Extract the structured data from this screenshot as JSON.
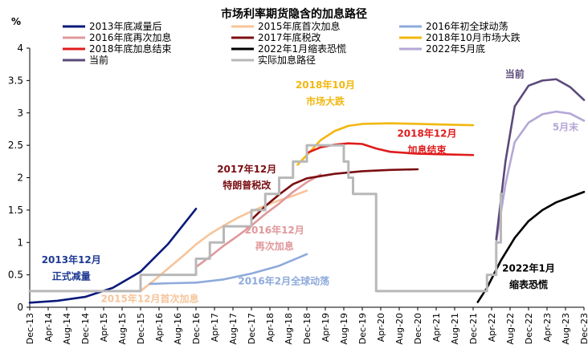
{
  "chart_data": {
    "type": "line",
    "title": "市场利率期货隐含的加息路径",
    "ylabel": "%",
    "ylim": [
      0,
      4
    ],
    "yticks": [
      "0",
      "0.5",
      "1",
      "1.5",
      "2",
      "2.5",
      "3",
      "3.5",
      "4"
    ],
    "xtick_labels": [
      "Dec-13",
      "Apr-14",
      "Aug-14",
      "Dec-14",
      "Apr-15",
      "Aug-15",
      "Dec-15",
      "Apr-16",
      "Aug-16",
      "Dec-16",
      "Apr-17",
      "Aug-17",
      "Dec-17",
      "Apr-18",
      "Aug-18",
      "Dec-18",
      "Apr-19",
      "Aug-19",
      "Dec-19",
      "Apr-20",
      "Aug-20",
      "Dec-20",
      "Apr-21",
      "Aug-21",
      "Dec-21",
      "Apr-22",
      "Aug-22",
      "Dec-22",
      "Apr-23",
      "Aug-23",
      "Dec-23"
    ],
    "grid": false,
    "legend_position": "top",
    "series": [
      {
        "name": "2013年底减量后",
        "color": "#0a1a7a",
        "x": [
          "2013-12",
          "2014-06",
          "2014-12",
          "2015-06",
          "2015-12",
          "2016-06",
          "2016-12"
        ],
        "y": [
          0.07,
          0.1,
          0.16,
          0.3,
          0.55,
          0.98,
          1.52
        ]
      },
      {
        "name": "2015年底首次加息",
        "color": "#f6c49a",
        "x": [
          "2015-12",
          "2016-03",
          "2016-06",
          "2016-09",
          "2016-12",
          "2017-03",
          "2017-06",
          "2017-09",
          "2017-12",
          "2018-03",
          "2018-06",
          "2018-09",
          "2018-12"
        ],
        "y": [
          0.25,
          0.42,
          0.6,
          0.78,
          0.97,
          1.13,
          1.26,
          1.38,
          1.48,
          1.57,
          1.65,
          1.72,
          1.8
        ]
      },
      {
        "name": "2016年初全球动荡",
        "color": "#8eaadb",
        "x": [
          "2016-02",
          "2016-06",
          "2016-12",
          "2017-06",
          "2017-12",
          "2018-06",
          "2018-12"
        ],
        "y": [
          0.36,
          0.37,
          0.38,
          0.43,
          0.52,
          0.64,
          0.82
        ]
      },
      {
        "name": "2016年底再次加息",
        "color": "#e0989b",
        "x": [
          "2016-12",
          "2017-03",
          "2017-06",
          "2017-09",
          "2017-12",
          "2018-03",
          "2018-06",
          "2018-09",
          "2018-12",
          "2019-03"
        ],
        "y": [
          0.62,
          0.78,
          0.95,
          1.1,
          1.26,
          1.44,
          1.6,
          1.78,
          1.93,
          2.05
        ]
      },
      {
        "name": "2017年底税改",
        "color": "#7b0e12",
        "x": [
          "2017-12",
          "2018-03",
          "2018-06",
          "2018-09",
          "2018-12",
          "2019-06",
          "2019-12",
          "2020-06",
          "2020-12"
        ],
        "y": [
          1.35,
          1.56,
          1.74,
          1.9,
          1.99,
          2.06,
          2.1,
          2.12,
          2.13
        ]
      },
      {
        "name": "2018年10月市场大跌",
        "color": "#f2b70f",
        "x": [
          "2018-10",
          "2018-12",
          "2019-03",
          "2019-06",
          "2019-09",
          "2019-12",
          "2020-06",
          "2020-12",
          "2021-06",
          "2021-12"
        ],
        "y": [
          2.2,
          2.35,
          2.58,
          2.72,
          2.8,
          2.83,
          2.84,
          2.83,
          2.82,
          2.81
        ]
      },
      {
        "name": "2018年底加息结束",
        "color": "#e01b1b",
        "x": [
          "2018-12",
          "2019-03",
          "2019-06",
          "2019-09",
          "2019-12",
          "2020-03",
          "2020-06",
          "2020-12",
          "2021-06",
          "2021-12"
        ],
        "y": [
          2.38,
          2.47,
          2.51,
          2.53,
          2.52,
          2.45,
          2.4,
          2.37,
          2.36,
          2.35
        ]
      },
      {
        "name": "2022年1月缩表恐慌",
        "color": "#000000",
        "x": [
          "2022-01",
          "2022-03",
          "2022-06",
          "2022-09",
          "2022-12",
          "2023-03",
          "2023-06",
          "2023-09",
          "2023-12"
        ],
        "y": [
          0.08,
          0.3,
          0.72,
          1.07,
          1.33,
          1.5,
          1.62,
          1.7,
          1.78
        ]
      },
      {
        "name": "2022年5月底",
        "color": "#b4a7d6",
        "x": [
          "2022-05",
          "2022-07",
          "2022-09",
          "2022-12",
          "2023-03",
          "2023-06",
          "2023-09",
          "2023-12"
        ],
        "y": [
          1.0,
          1.9,
          2.55,
          2.85,
          2.98,
          3.02,
          2.99,
          2.88
        ]
      },
      {
        "name": "当前",
        "color": "#5b4a7a",
        "x": [
          "2022-05",
          "2022-07",
          "2022-09",
          "2022-12",
          "2023-03",
          "2023-06",
          "2023-09",
          "2023-12"
        ],
        "y": [
          1.05,
          2.25,
          3.1,
          3.42,
          3.5,
          3.52,
          3.4,
          3.2
        ]
      },
      {
        "name": "实际加息路径",
        "color": "#b8b8b8",
        "step": true,
        "x": [
          "2013-12",
          "2015-12",
          "2016-12",
          "2017-03",
          "2017-06",
          "2017-12",
          "2018-03",
          "2018-06",
          "2018-09",
          "2018-12",
          "2019-08",
          "2019-09",
          "2019-10",
          "2020-03",
          "2022-03",
          "2022-05",
          "2022-06"
        ],
        "y": [
          0.25,
          0.5,
          0.75,
          1.0,
          1.25,
          1.5,
          1.75,
          2.0,
          2.25,
          2.5,
          2.25,
          2.0,
          1.75,
          0.25,
          0.5,
          1.0,
          1.75
        ]
      }
    ],
    "annotations": [
      {
        "text": "2013年12月",
        "color": "#1f3a93",
        "x": "2014-09",
        "y": 0.68
      },
      {
        "text": "正式减量",
        "color": "#1f3a93",
        "x": "2014-09",
        "y": 0.43
      },
      {
        "text": "2015年12月首次加息",
        "color": "#f6c49a",
        "x": "2016-02",
        "y": 0.08
      },
      {
        "text": "2016年2月全球动荡",
        "color": "#8eaadb",
        "x": "2018-07",
        "y": 0.35
      },
      {
        "text": "2016年12月",
        "color": "#e0989b",
        "x": "2018-05",
        "y": 1.14
      },
      {
        "text": "再次加息",
        "color": "#e0989b",
        "x": "2018-05",
        "y": 0.89
      },
      {
        "text": "2017年12月",
        "color": "#7b0e12",
        "x": "2017-11",
        "y": 2.08
      },
      {
        "text": "特朗普税改",
        "color": "#7b0e12",
        "x": "2017-11",
        "y": 1.83
      },
      {
        "text": "2018年10月",
        "color": "#f2b70f",
        "x": "2019-04",
        "y": 3.38
      },
      {
        "text": "市场大跌",
        "color": "#f2b70f",
        "x": "2019-04",
        "y": 3.13
      },
      {
        "text": "2018年12月",
        "color": "#e01b1b",
        "x": "2021-02",
        "y": 2.63
      },
      {
        "text": "加息结束",
        "color": "#e01b1b",
        "x": "2021-02",
        "y": 2.38
      },
      {
        "text": "当前",
        "color": "#5b4a7a",
        "x": "2022-09",
        "y": 3.55
      },
      {
        "text": "5月末",
        "color": "#b4a7d6",
        "x": "2023-08",
        "y": 2.73
      },
      {
        "text": "2022年1月",
        "color": "#000000",
        "x": "2022-12",
        "y": 0.55
      },
      {
        "text": "缩表恐慌",
        "color": "#000000",
        "x": "2022-12",
        "y": 0.3
      }
    ]
  }
}
